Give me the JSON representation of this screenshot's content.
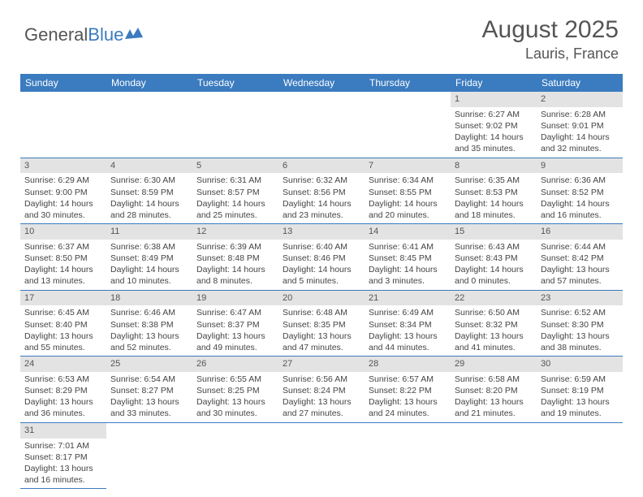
{
  "logo": {
    "text1": "General",
    "text2": "Blue"
  },
  "title": "August 2025",
  "location": "Lauris, France",
  "weekdays": [
    "Sunday",
    "Monday",
    "Tuesday",
    "Wednesday",
    "Thursday",
    "Friday",
    "Saturday"
  ],
  "colors": {
    "header_bg": "#3b7bbf",
    "header_text": "#ffffff",
    "daynum_bg": "#e3e3e3",
    "border": "#3b7bbf",
    "body_text": "#444444",
    "title_text": "#555555"
  },
  "weeks": [
    [
      {
        "empty": true
      },
      {
        "empty": true
      },
      {
        "empty": true
      },
      {
        "empty": true
      },
      {
        "empty": true
      },
      {
        "day": "1",
        "sunrise": "Sunrise: 6:27 AM",
        "sunset": "Sunset: 9:02 PM",
        "daylight": "Daylight: 14 hours and 35 minutes."
      },
      {
        "day": "2",
        "sunrise": "Sunrise: 6:28 AM",
        "sunset": "Sunset: 9:01 PM",
        "daylight": "Daylight: 14 hours and 32 minutes."
      }
    ],
    [
      {
        "day": "3",
        "sunrise": "Sunrise: 6:29 AM",
        "sunset": "Sunset: 9:00 PM",
        "daylight": "Daylight: 14 hours and 30 minutes."
      },
      {
        "day": "4",
        "sunrise": "Sunrise: 6:30 AM",
        "sunset": "Sunset: 8:59 PM",
        "daylight": "Daylight: 14 hours and 28 minutes."
      },
      {
        "day": "5",
        "sunrise": "Sunrise: 6:31 AM",
        "sunset": "Sunset: 8:57 PM",
        "daylight": "Daylight: 14 hours and 25 minutes."
      },
      {
        "day": "6",
        "sunrise": "Sunrise: 6:32 AM",
        "sunset": "Sunset: 8:56 PM",
        "daylight": "Daylight: 14 hours and 23 minutes."
      },
      {
        "day": "7",
        "sunrise": "Sunrise: 6:34 AM",
        "sunset": "Sunset: 8:55 PM",
        "daylight": "Daylight: 14 hours and 20 minutes."
      },
      {
        "day": "8",
        "sunrise": "Sunrise: 6:35 AM",
        "sunset": "Sunset: 8:53 PM",
        "daylight": "Daylight: 14 hours and 18 minutes."
      },
      {
        "day": "9",
        "sunrise": "Sunrise: 6:36 AM",
        "sunset": "Sunset: 8:52 PM",
        "daylight": "Daylight: 14 hours and 16 minutes."
      }
    ],
    [
      {
        "day": "10",
        "sunrise": "Sunrise: 6:37 AM",
        "sunset": "Sunset: 8:50 PM",
        "daylight": "Daylight: 14 hours and 13 minutes."
      },
      {
        "day": "11",
        "sunrise": "Sunrise: 6:38 AM",
        "sunset": "Sunset: 8:49 PM",
        "daylight": "Daylight: 14 hours and 10 minutes."
      },
      {
        "day": "12",
        "sunrise": "Sunrise: 6:39 AM",
        "sunset": "Sunset: 8:48 PM",
        "daylight": "Daylight: 14 hours and 8 minutes."
      },
      {
        "day": "13",
        "sunrise": "Sunrise: 6:40 AM",
        "sunset": "Sunset: 8:46 PM",
        "daylight": "Daylight: 14 hours and 5 minutes."
      },
      {
        "day": "14",
        "sunrise": "Sunrise: 6:41 AM",
        "sunset": "Sunset: 8:45 PM",
        "daylight": "Daylight: 14 hours and 3 minutes."
      },
      {
        "day": "15",
        "sunrise": "Sunrise: 6:43 AM",
        "sunset": "Sunset: 8:43 PM",
        "daylight": "Daylight: 14 hours and 0 minutes."
      },
      {
        "day": "16",
        "sunrise": "Sunrise: 6:44 AM",
        "sunset": "Sunset: 8:42 PM",
        "daylight": "Daylight: 13 hours and 57 minutes."
      }
    ],
    [
      {
        "day": "17",
        "sunrise": "Sunrise: 6:45 AM",
        "sunset": "Sunset: 8:40 PM",
        "daylight": "Daylight: 13 hours and 55 minutes."
      },
      {
        "day": "18",
        "sunrise": "Sunrise: 6:46 AM",
        "sunset": "Sunset: 8:38 PM",
        "daylight": "Daylight: 13 hours and 52 minutes."
      },
      {
        "day": "19",
        "sunrise": "Sunrise: 6:47 AM",
        "sunset": "Sunset: 8:37 PM",
        "daylight": "Daylight: 13 hours and 49 minutes."
      },
      {
        "day": "20",
        "sunrise": "Sunrise: 6:48 AM",
        "sunset": "Sunset: 8:35 PM",
        "daylight": "Daylight: 13 hours and 47 minutes."
      },
      {
        "day": "21",
        "sunrise": "Sunrise: 6:49 AM",
        "sunset": "Sunset: 8:34 PM",
        "daylight": "Daylight: 13 hours and 44 minutes."
      },
      {
        "day": "22",
        "sunrise": "Sunrise: 6:50 AM",
        "sunset": "Sunset: 8:32 PM",
        "daylight": "Daylight: 13 hours and 41 minutes."
      },
      {
        "day": "23",
        "sunrise": "Sunrise: 6:52 AM",
        "sunset": "Sunset: 8:30 PM",
        "daylight": "Daylight: 13 hours and 38 minutes."
      }
    ],
    [
      {
        "day": "24",
        "sunrise": "Sunrise: 6:53 AM",
        "sunset": "Sunset: 8:29 PM",
        "daylight": "Daylight: 13 hours and 36 minutes."
      },
      {
        "day": "25",
        "sunrise": "Sunrise: 6:54 AM",
        "sunset": "Sunset: 8:27 PM",
        "daylight": "Daylight: 13 hours and 33 minutes."
      },
      {
        "day": "26",
        "sunrise": "Sunrise: 6:55 AM",
        "sunset": "Sunset: 8:25 PM",
        "daylight": "Daylight: 13 hours and 30 minutes."
      },
      {
        "day": "27",
        "sunrise": "Sunrise: 6:56 AM",
        "sunset": "Sunset: 8:24 PM",
        "daylight": "Daylight: 13 hours and 27 minutes."
      },
      {
        "day": "28",
        "sunrise": "Sunrise: 6:57 AM",
        "sunset": "Sunset: 8:22 PM",
        "daylight": "Daylight: 13 hours and 24 minutes."
      },
      {
        "day": "29",
        "sunrise": "Sunrise: 6:58 AM",
        "sunset": "Sunset: 8:20 PM",
        "daylight": "Daylight: 13 hours and 21 minutes."
      },
      {
        "day": "30",
        "sunrise": "Sunrise: 6:59 AM",
        "sunset": "Sunset: 8:19 PM",
        "daylight": "Daylight: 13 hours and 19 minutes."
      }
    ],
    [
      {
        "day": "31",
        "sunrise": "Sunrise: 7:01 AM",
        "sunset": "Sunset: 8:17 PM",
        "daylight": "Daylight: 13 hours and 16 minutes."
      },
      {
        "empty": true
      },
      {
        "empty": true
      },
      {
        "empty": true
      },
      {
        "empty": true
      },
      {
        "empty": true
      },
      {
        "empty": true
      }
    ]
  ]
}
